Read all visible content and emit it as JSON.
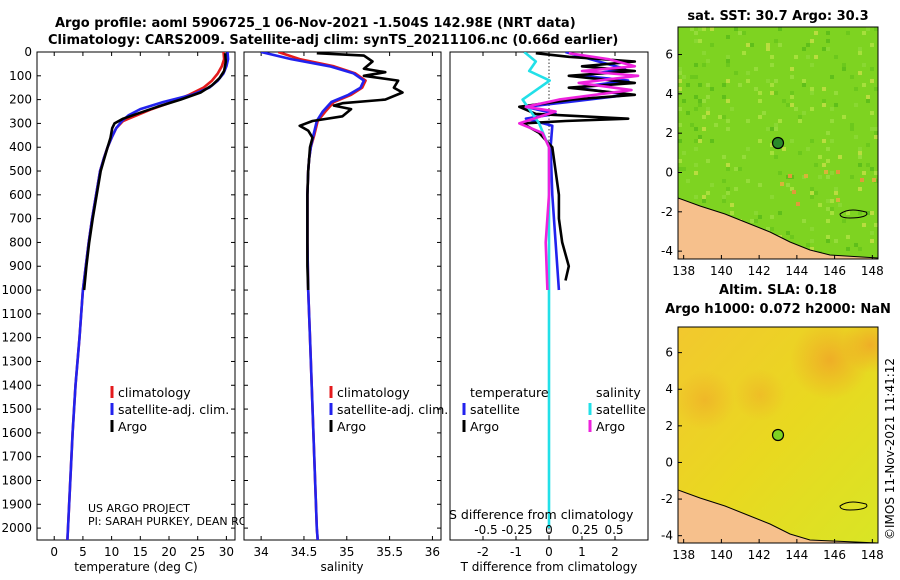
{
  "header": {
    "title_line1": "Argo profile: aoml 5906725_1 06-Nov-2021 -1.504S 142.98E (NRT data)",
    "title_line2": "Climatology: CARS2009. Satellite-adj clim: synTS_20211106.nc (0.66d earlier)"
  },
  "credits": {
    "project": "US ARGO PROJECT",
    "pi": "PI: SARAH PURKEY, DEAN RO",
    "imos": "©IMOS 11-Nov-2021 11:41:12"
  },
  "colors": {
    "climatology": "#e41a1c",
    "satellite": "#2222ee",
    "argo": "#000000",
    "sal_satellite": "#22e0e8",
    "sal_argo": "#ee22dd",
    "land": "#f6c08c",
    "sst_field": "#7ed321",
    "sla_field": "#e6d21a"
  },
  "chart_data": [
    {
      "type": "line",
      "name": "temperature-panel",
      "xlabel": "temperature (deg C)",
      "ylabel": "",
      "xlim": [
        -3,
        31.5
      ],
      "ylim": [
        2050,
        0
      ],
      "xticks": [
        0,
        5,
        10,
        15,
        20,
        25,
        30
      ],
      "yticks": [
        0,
        100,
        200,
        300,
        400,
        500,
        600,
        700,
        800,
        900,
        1000,
        1100,
        1200,
        1300,
        1400,
        1500,
        1600,
        1700,
        1800,
        1900,
        2000
      ],
      "legend": [
        "climatology",
        "satellite-adj. clim.",
        "Argo"
      ],
      "series": [
        {
          "name": "climatology",
          "color_key": "climatology",
          "points": [
            [
              29.5,
              0
            ],
            [
              29.6,
              30
            ],
            [
              29.2,
              60
            ],
            [
              28.5,
              90
            ],
            [
              27.5,
              120
            ],
            [
              26,
              150
            ],
            [
              23.5,
              180
            ],
            [
              20.5,
              210
            ],
            [
              17,
              240
            ],
            [
              14.5,
              265
            ],
            [
              12,
              290
            ],
            [
              10.8,
              320
            ],
            [
              10,
              360
            ],
            [
              9.3,
              400
            ],
            [
              8.6,
              450
            ],
            [
              8,
              500
            ],
            [
              7.3,
              600
            ],
            [
              6.6,
              700
            ],
            [
              6,
              800
            ],
            [
              5.5,
              900
            ],
            [
              5,
              1000
            ],
            [
              4.4,
              1200
            ],
            [
              3.7,
              1400
            ],
            [
              3.2,
              1600
            ],
            [
              2.8,
              1800
            ],
            [
              2.4,
              2000
            ],
            [
              2.3,
              2050
            ]
          ]
        },
        {
          "name": "satellite-adj. clim.",
          "color_key": "satellite",
          "points": [
            [
              30.2,
              0
            ],
            [
              30.3,
              30
            ],
            [
              30,
              60
            ],
            [
              29.5,
              90
            ],
            [
              28.5,
              120
            ],
            [
              27,
              150
            ],
            [
              24,
              180
            ],
            [
              19,
              210
            ],
            [
              15,
              240
            ],
            [
              13,
              265
            ],
            [
              11.8,
              290
            ],
            [
              10.8,
              320
            ],
            [
              10,
              360
            ],
            [
              9.3,
              400
            ],
            [
              8.6,
              450
            ],
            [
              8,
              500
            ],
            [
              7.3,
              600
            ],
            [
              6.6,
              700
            ],
            [
              6,
              800
            ],
            [
              5.5,
              900
            ],
            [
              5,
              1000
            ],
            [
              4.4,
              1200
            ],
            [
              3.7,
              1400
            ],
            [
              3.2,
              1600
            ],
            [
              2.8,
              1800
            ],
            [
              2.4,
              2000
            ],
            [
              2.3,
              2050
            ]
          ]
        },
        {
          "name": "Argo",
          "color_key": "argo",
          "points": [
            [
              29.8,
              5
            ],
            [
              29.9,
              40
            ],
            [
              29.6,
              80
            ],
            [
              28.8,
              110
            ],
            [
              27.5,
              140
            ],
            [
              25.5,
              170
            ],
            [
              22,
              200
            ],
            [
              18,
              230
            ],
            [
              15,
              255
            ],
            [
              12,
              280
            ],
            [
              10.5,
              300
            ],
            [
              10.1,
              320
            ],
            [
              9.8,
              360
            ],
            [
              9.3,
              400
            ],
            [
              8.7,
              450
            ],
            [
              8.1,
              500
            ],
            [
              7.4,
              600
            ],
            [
              6.7,
              700
            ],
            [
              6.1,
              800
            ],
            [
              5.6,
              900
            ],
            [
              5.2,
              1000
            ]
          ]
        }
      ]
    },
    {
      "type": "line",
      "name": "salinity-panel",
      "xlabel": "salinity",
      "xlim": [
        33.8,
        36.1
      ],
      "ylim": [
        2050,
        0
      ],
      "xticks": [
        34,
        34.5,
        35,
        35.5,
        36
      ],
      "legend": [
        "climatology",
        "satellite-adj. clim.",
        "Argo"
      ],
      "series": [
        {
          "name": "climatology",
          "color_key": "climatology",
          "points": [
            [
              34.2,
              0
            ],
            [
              34.45,
              30
            ],
            [
              34.85,
              60
            ],
            [
              35.1,
              90
            ],
            [
              35.22,
              120
            ],
            [
              35.18,
              150
            ],
            [
              35.05,
              180
            ],
            [
              34.85,
              210
            ],
            [
              34.75,
              250
            ],
            [
              34.66,
              290
            ],
            [
              34.62,
              350
            ],
            [
              34.58,
              400
            ],
            [
              34.56,
              450
            ],
            [
              34.55,
              500
            ],
            [
              34.54,
              600
            ],
            [
              34.54,
              700
            ],
            [
              34.54,
              800
            ],
            [
              34.55,
              1000
            ],
            [
              34.57,
              1200
            ],
            [
              34.59,
              1400
            ],
            [
              34.61,
              1600
            ],
            [
              34.63,
              1800
            ],
            [
              34.65,
              2000
            ],
            [
              34.66,
              2050
            ]
          ]
        },
        {
          "name": "satellite-adj. clim.",
          "color_key": "satellite",
          "points": [
            [
              34.0,
              0
            ],
            [
              34.35,
              30
            ],
            [
              34.8,
              60
            ],
            [
              35.08,
              90
            ],
            [
              35.2,
              120
            ],
            [
              35.16,
              150
            ],
            [
              35.02,
              180
            ],
            [
              34.82,
              210
            ],
            [
              34.72,
              250
            ],
            [
              34.65,
              290
            ],
            [
              34.61,
              350
            ],
            [
              34.58,
              400
            ],
            [
              34.56,
              450
            ],
            [
              34.55,
              500
            ],
            [
              34.54,
              600
            ],
            [
              34.54,
              700
            ],
            [
              34.54,
              800
            ],
            [
              34.55,
              1000
            ],
            [
              34.57,
              1200
            ],
            [
              34.59,
              1400
            ],
            [
              34.61,
              1600
            ],
            [
              34.63,
              1800
            ],
            [
              34.65,
              2000
            ],
            [
              34.66,
              2050
            ]
          ]
        },
        {
          "name": "Argo",
          "color_key": "argo",
          "points": [
            [
              34.65,
              5
            ],
            [
              35.2,
              15
            ],
            [
              35.3,
              40
            ],
            [
              35.2,
              70
            ],
            [
              35.45,
              85
            ],
            [
              35.2,
              100
            ],
            [
              35.6,
              120
            ],
            [
              35.55,
              150
            ],
            [
              35.65,
              170
            ],
            [
              35.45,
              200
            ],
            [
              34.95,
              215
            ],
            [
              34.85,
              225
            ],
            [
              35.05,
              240
            ],
            [
              34.95,
              270
            ],
            [
              34.6,
              290
            ],
            [
              34.45,
              310
            ],
            [
              34.55,
              330
            ],
            [
              34.6,
              360
            ],
            [
              34.57,
              400
            ],
            [
              34.55,
              500
            ],
            [
              34.54,
              600
            ],
            [
              34.54,
              700
            ],
            [
              34.54,
              800
            ],
            [
              34.54,
              900
            ],
            [
              34.55,
              1000
            ]
          ]
        }
      ]
    },
    {
      "type": "line",
      "name": "difference-panel",
      "xlabel": "T difference from climatology",
      "xlim": [
        -3,
        3
      ],
      "ylim": [
        2050,
        0
      ],
      "xticks": [
        -2,
        -1,
        0,
        1,
        2
      ],
      "inset_label": "S difference from climatology",
      "inset_ticks": [
        "-0.5",
        "-0.25",
        "0",
        "0.25",
        "0.5"
      ],
      "legend_temperature_title": "temperature",
      "legend_salinity_title": "salinity",
      "legend": [
        "satellite",
        "Argo",
        "satellite",
        "Argo"
      ],
      "series": [
        {
          "name": "temperature satellite",
          "color_key": "satellite",
          "points": [
            [
              0.5,
              0
            ],
            [
              1.5,
              40
            ],
            [
              2.3,
              70
            ],
            [
              1.0,
              100
            ],
            [
              2.4,
              120
            ],
            [
              0.8,
              150
            ],
            [
              2.4,
              180
            ],
            [
              0.6,
              210
            ],
            [
              -0.7,
              230
            ],
            [
              0.2,
              260
            ],
            [
              -0.7,
              280
            ],
            [
              0.1,
              310
            ],
            [
              0.05,
              400
            ],
            [
              0.1,
              600
            ],
            [
              0.2,
              800
            ],
            [
              0.3,
              1000
            ]
          ]
        },
        {
          "name": "temperature Argo",
          "color_key": "argo",
          "points": [
            [
              -0.4,
              5
            ],
            [
              0.6,
              20
            ],
            [
              2.6,
              40
            ],
            [
              1.0,
              60
            ],
            [
              2.6,
              80
            ],
            [
              0.6,
              100
            ],
            [
              2.6,
              130
            ],
            [
              0.6,
              150
            ],
            [
              2.6,
              180
            ],
            [
              0.7,
              200
            ],
            [
              -0.9,
              230
            ],
            [
              -0.4,
              260
            ],
            [
              2.4,
              280
            ],
            [
              0.5,
              290
            ],
            [
              -0.8,
              300
            ],
            [
              -0.3,
              340
            ],
            [
              0.1,
              400
            ],
            [
              0.2,
              500
            ],
            [
              0.3,
              600
            ],
            [
              0.3,
              700
            ],
            [
              0.4,
              800
            ],
            [
              0.6,
              900
            ],
            [
              0.5,
              960
            ]
          ]
        },
        {
          "name": "salinity satellite",
          "color_key": "sal_satellite",
          "points": [
            [
              -0.75,
              0
            ],
            [
              -0.4,
              40
            ],
            [
              -0.6,
              80
            ],
            [
              0.02,
              120
            ],
            [
              -0.8,
              200
            ],
            [
              -0.3,
              300
            ],
            [
              0,
              400
            ],
            [
              0,
              1000
            ],
            [
              0,
              2000
            ]
          ]
        },
        {
          "name": "salinity Argo",
          "color_key": "sal_argo",
          "points": [
            [
              0.6,
              5
            ],
            [
              1.8,
              30
            ],
            [
              2.6,
              60
            ],
            [
              1.0,
              80
            ],
            [
              2.7,
              100
            ],
            [
              0.9,
              130
            ],
            [
              2.5,
              160
            ],
            [
              0.3,
              200
            ],
            [
              -0.7,
              230
            ],
            [
              0.2,
              250
            ],
            [
              -0.9,
              300
            ],
            [
              -0.2,
              340
            ],
            [
              0,
              400
            ],
            [
              0,
              600
            ],
            [
              -0.1,
              800
            ],
            [
              -0.05,
              1000
            ]
          ]
        }
      ]
    },
    {
      "type": "heatmap",
      "name": "sst-map",
      "title": "sat. SST: 30.7 Argo: 30.3",
      "xlim": [
        137.7,
        148.3
      ],
      "ylim": [
        -4.4,
        7.4
      ],
      "xticks": [
        138,
        140,
        142,
        144,
        146,
        148
      ],
      "yticks": [
        -4,
        -2,
        0,
        2,
        4,
        6
      ],
      "marker": [
        143,
        1.5
      ]
    },
    {
      "type": "heatmap",
      "name": "sla-map",
      "title_line1": "Altim. SLA: 0.18",
      "title_line2": "Argo h1000: 0.072 h2000: NaN",
      "xlim": [
        137.7,
        148.3
      ],
      "ylim": [
        -4.4,
        7.4
      ],
      "xticks": [
        138,
        140,
        142,
        144,
        146,
        148
      ],
      "yticks": [
        -4,
        -2,
        0,
        2,
        4,
        6
      ],
      "marker": [
        143,
        1.5
      ]
    }
  ]
}
